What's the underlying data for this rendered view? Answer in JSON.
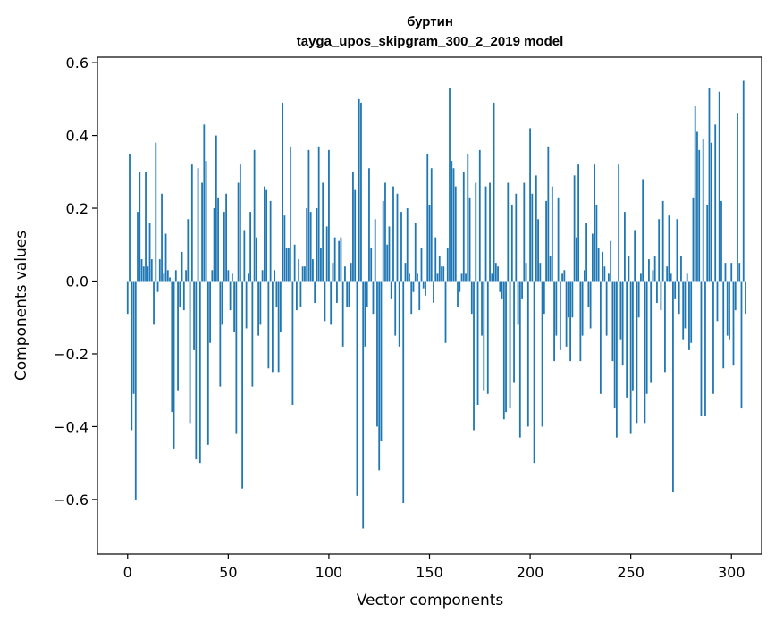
{
  "chart_data": {
    "type": "bar",
    "title_line1": "буртин",
    "title_line2": "tayga_upos_skipgram_300_2_2019 model",
    "xlabel": "Vector components",
    "ylabel": "Components values",
    "xlim": [
      -15,
      315
    ],
    "ylim": [
      -0.75,
      0.615
    ],
    "xticks": [
      0,
      50,
      100,
      150,
      200,
      250,
      300
    ],
    "yticks": [
      -0.6,
      -0.4,
      -0.2,
      0.0,
      0.2,
      0.4,
      0.6
    ],
    "xtick_labels": [
      "0",
      "50",
      "100",
      "150",
      "200",
      "250",
      "300"
    ],
    "ytick_labels": [
      "−0.6",
      "−0.4",
      "−0.2",
      "0.0",
      "0.2",
      "0.4",
      "0.6"
    ],
    "color": "#1f77b4",
    "values": [
      -0.09,
      0.35,
      -0.41,
      -0.31,
      -0.6,
      0.19,
      0.3,
      0.06,
      0.04,
      0.3,
      0.04,
      0.16,
      0.06,
      -0.12,
      0.38,
      -0.03,
      0.06,
      0.24,
      0.02,
      0.13,
      0.03,
      0.01,
      -0.36,
      -0.46,
      0.03,
      -0.3,
      -0.07,
      0.08,
      -0.08,
      0.03,
      0.17,
      -0.39,
      0.32,
      -0.19,
      -0.49,
      0.31,
      -0.5,
      0.27,
      0.43,
      0.33,
      -0.45,
      -0.17,
      0.03,
      0.2,
      0.4,
      0.23,
      -0.29,
      -0.12,
      0.19,
      0.24,
      0.03,
      -0.08,
      0.02,
      -0.14,
      -0.42,
      0.27,
      0.32,
      -0.57,
      0.14,
      -0.13,
      0.02,
      0.19,
      -0.29,
      0.36,
      0.12,
      -0.15,
      -0.12,
      0.03,
      0.26,
      0.25,
      -0.24,
      0.22,
      -0.25,
      0.03,
      -0.07,
      -0.25,
      -0.14,
      0.49,
      0.18,
      0.09,
      0.09,
      0.37,
      -0.34,
      0.1,
      -0.08,
      0.06,
      -0.07,
      0.04,
      0.04,
      0.2,
      0.36,
      0.19,
      0.06,
      -0.06,
      0.2,
      0.37,
      0.09,
      0.27,
      -0.11,
      0.15,
      0.36,
      -0.12,
      0.05,
      0.12,
      -0.06,
      0.11,
      0.12,
      -0.18,
      0.04,
      -0.07,
      -0.07,
      0.05,
      0.3,
      0.25,
      -0.59,
      0.5,
      0.49,
      -0.68,
      -0.18,
      -0.07,
      0.31,
      0.09,
      -0.09,
      0.17,
      -0.4,
      -0.52,
      -0.44,
      0.22,
      0.27,
      0.1,
      0.15,
      -0.05,
      0.26,
      -0.15,
      0.24,
      -0.18,
      0.19,
      -0.61,
      0.05,
      0.2,
      0.02,
      -0.09,
      -0.03,
      0.16,
      0.02,
      -0.08,
      0.09,
      -0.02,
      -0.04,
      0.35,
      0.21,
      0.31,
      -0.06,
      0.12,
      0.02,
      0.07,
      0.04,
      0.04,
      -0.17,
      0.09,
      0.53,
      0.33,
      0.31,
      0.26,
      -0.07,
      -0.03,
      0.02,
      0.3,
      0.02,
      0.35,
      0.23,
      -0.09,
      -0.41,
      0.27,
      -0.34,
      0.36,
      -0.15,
      -0.3,
      0.26,
      -0.31,
      0.27,
      0.02,
      0.49,
      0.05,
      0.04,
      -0.03,
      -0.05,
      -0.38,
      -0.36,
      0.27,
      -0.35,
      0.21,
      -0.28,
      0.24,
      -0.12,
      -0.43,
      -0.05,
      0.27,
      0.05,
      -0.4,
      0.42,
      0.24,
      -0.5,
      0.29,
      0.17,
      0.05,
      -0.4,
      -0.09,
      0.22,
      0.37,
      0.07,
      0.26,
      -0.22,
      -0.15,
      0.23,
      -0.19,
      0.02,
      0.03,
      -0.18,
      -0.1,
      -0.22,
      -0.1,
      0.29,
      0.12,
      0.32,
      -0.22,
      -0.15,
      0.03,
      0.16,
      -0.07,
      -0.13,
      0.13,
      0.32,
      0.21,
      0.09,
      -0.31,
      0.08,
      0.04,
      -0.15,
      0.02,
      0.11,
      -0.22,
      -0.35,
      -0.43,
      0.32,
      -0.16,
      -0.23,
      0.19,
      -0.32,
      0.07,
      -0.42,
      -0.3,
      0.14,
      -0.39,
      -0.1,
      0.02,
      0.28,
      -0.39,
      -0.31,
      0.06,
      -0.28,
      0.03,
      0.07,
      -0.06,
      0.17,
      -0.08,
      0.22,
      -0.25,
      0.04,
      0.18,
      0.02,
      -0.58,
      -0.05,
      0.17,
      -0.09,
      0.07,
      -0.16,
      -0.13,
      0.02,
      -0.19,
      -0.17,
      0.23,
      0.48,
      0.41,
      0.36,
      -0.37,
      0.39,
      -0.37,
      0.21,
      0.53,
      0.38,
      -0.31,
      0.43,
      -0.11,
      0.52,
      0.22,
      -0.24,
      0.05,
      -0.15,
      -0.16,
      0.05,
      -0.23,
      -0.08,
      0.46,
      0.05,
      -0.35,
      0.55,
      -0.09
    ]
  }
}
